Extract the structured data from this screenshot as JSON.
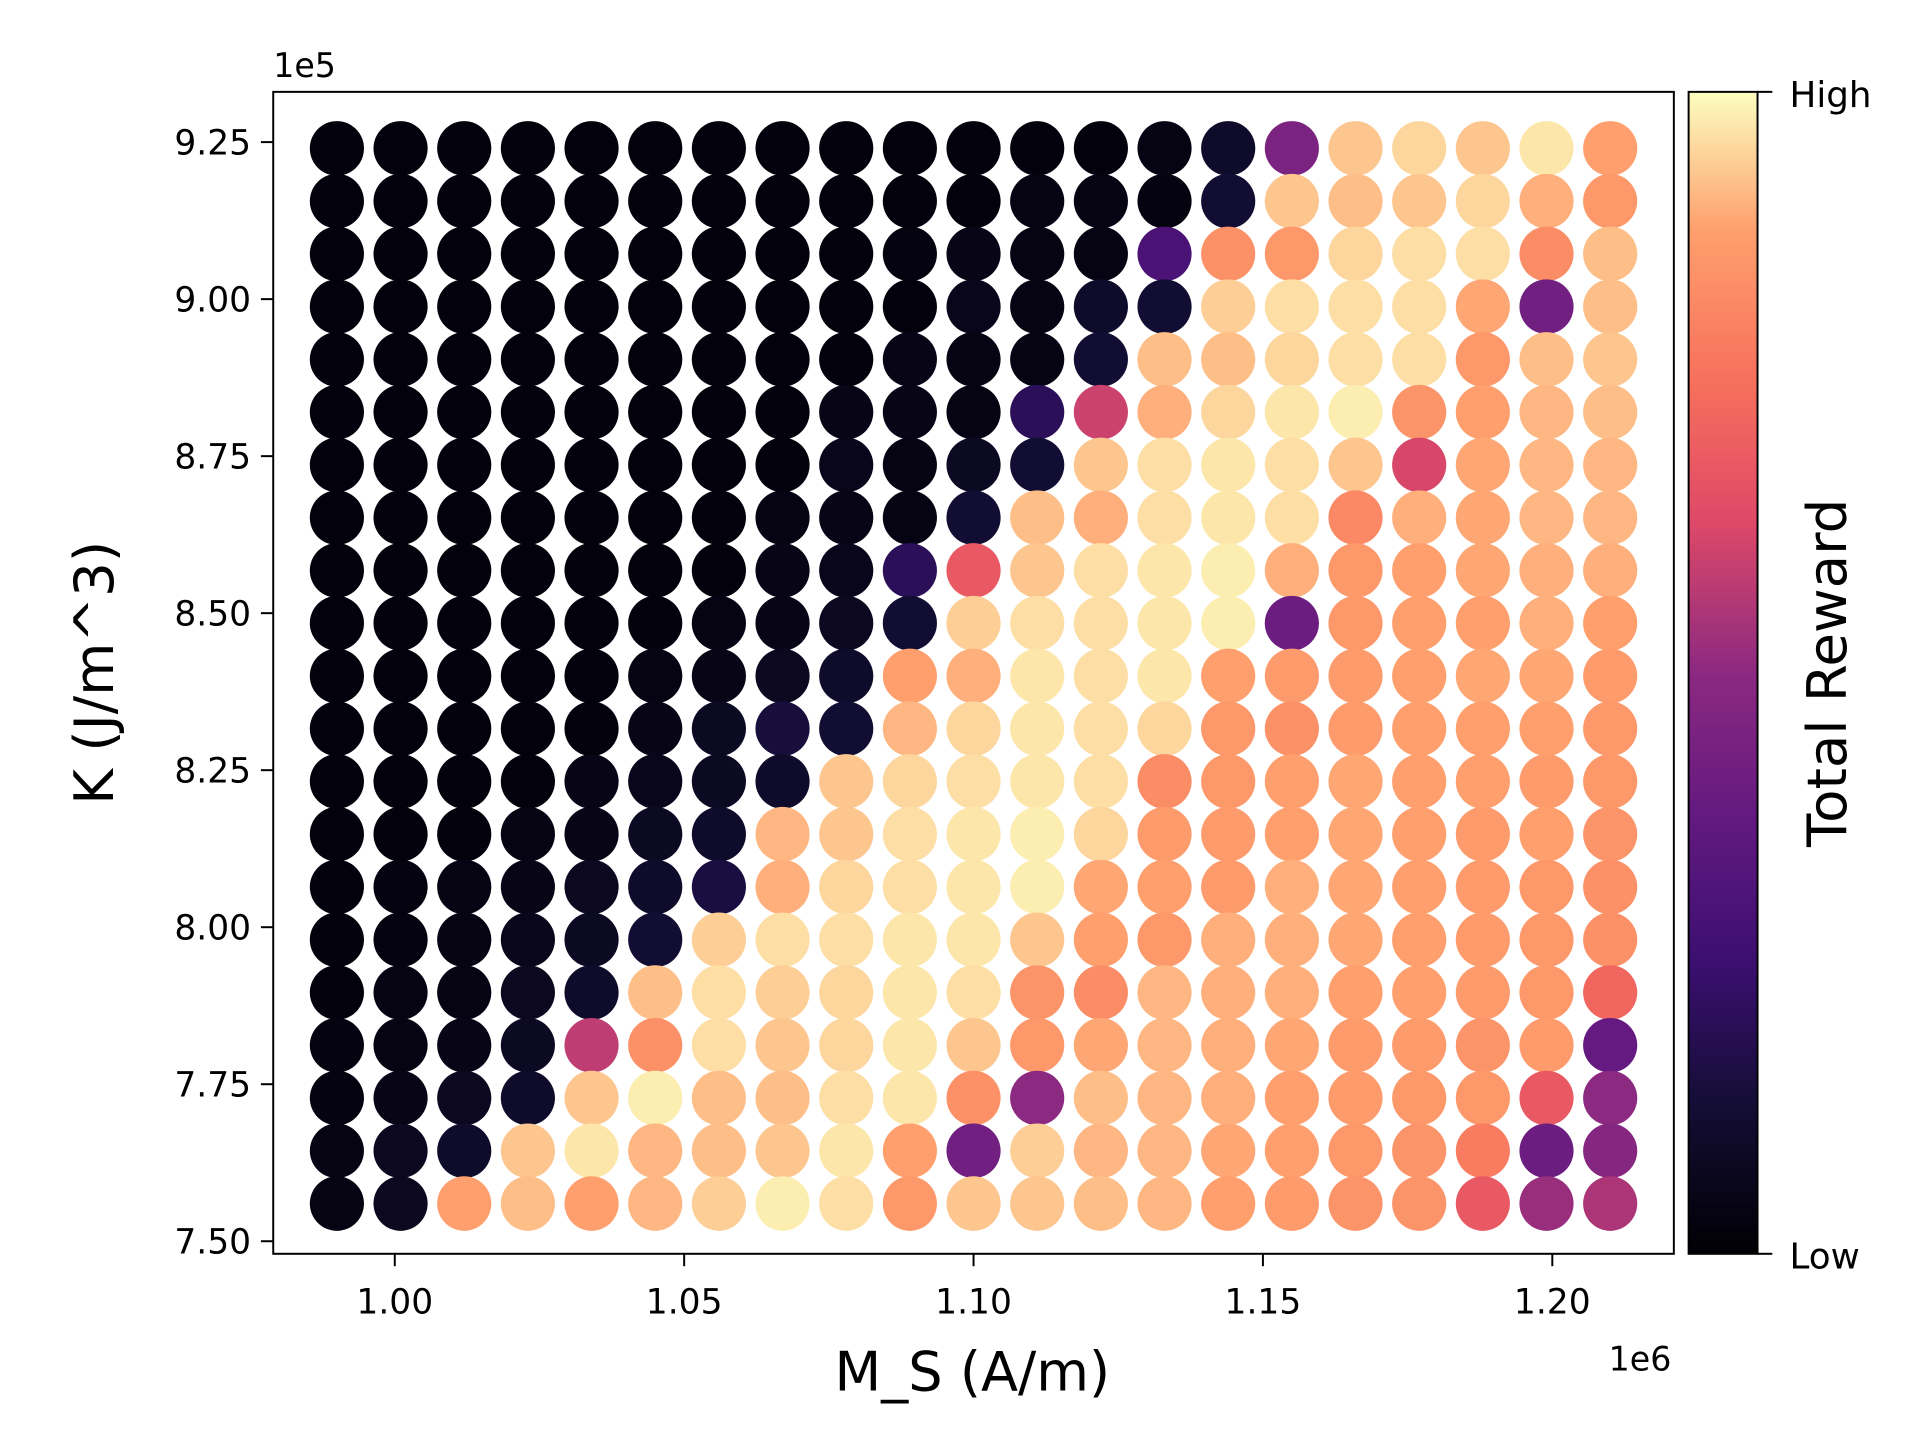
{
  "chart_data": {
    "type": "scatter",
    "xlabel": "M_S (A/m)",
    "xlabel_main": "M",
    "xlabel_sub": "S",
    "xlabel_rest": " (A/m)",
    "ylabel": "K (J/m^3)",
    "ylabel_main": "K (J/",
    "ylabel_m": "m",
    "ylabel_sup": "3",
    "ylabel_close": ")",
    "x_offset_label": "1e6",
    "y_offset_label": "1e5",
    "xlim": [
      0.979,
      1.221
    ],
    "ylim": [
      7.48,
      9.33
    ],
    "xticks": [
      1.0,
      1.05,
      1.1,
      1.15,
      1.2
    ],
    "xtick_labels": [
      "1.00",
      "1.05",
      "1.10",
      "1.15",
      "1.20"
    ],
    "yticks": [
      7.5,
      7.75,
      8.0,
      8.25,
      8.5,
      8.75,
      9.0,
      9.25
    ],
    "ytick_labels": [
      "7.50",
      "7.75",
      "8.00",
      "8.25",
      "8.50",
      "8.75",
      "9.00",
      "9.25"
    ],
    "x_values": [
      0.99,
      1.001,
      1.012,
      1.023,
      1.034,
      1.045,
      1.056,
      1.067,
      1.078,
      1.089,
      1.1,
      1.111,
      1.122,
      1.133,
      1.144,
      1.155,
      1.166,
      1.177,
      1.188,
      1.199,
      1.21
    ],
    "y_values_top_to_bottom": [
      9.24,
      9.156,
      9.072,
      8.988,
      8.904,
      8.82,
      8.736,
      8.652,
      8.568,
      8.484,
      8.4,
      8.316,
      8.232,
      8.148,
      8.064,
      7.98,
      7.896,
      7.812,
      7.728,
      7.644,
      7.56
    ],
    "reward_normalized": [
      [
        0.02,
        0.02,
        0.02,
        0.02,
        0.02,
        0.02,
        0.02,
        0.02,
        0.02,
        0.02,
        0.02,
        0.02,
        0.02,
        0.04,
        0.1,
        0.45,
        0.93,
        0.95,
        0.93,
        0.97,
        0.88
      ],
      [
        0.02,
        0.02,
        0.02,
        0.02,
        0.02,
        0.02,
        0.02,
        0.02,
        0.02,
        0.02,
        0.02,
        0.04,
        0.04,
        0.03,
        0.12,
        0.93,
        0.92,
        0.93,
        0.95,
        0.9,
        0.86
      ],
      [
        0.02,
        0.02,
        0.02,
        0.02,
        0.02,
        0.02,
        0.02,
        0.02,
        0.02,
        0.03,
        0.05,
        0.04,
        0.04,
        0.3,
        0.84,
        0.86,
        0.95,
        0.96,
        0.96,
        0.83,
        0.92
      ],
      [
        0.02,
        0.02,
        0.02,
        0.02,
        0.02,
        0.02,
        0.02,
        0.02,
        0.02,
        0.02,
        0.06,
        0.04,
        0.1,
        0.12,
        0.94,
        0.96,
        0.96,
        0.96,
        0.89,
        0.42,
        0.92
      ],
      [
        0.02,
        0.02,
        0.02,
        0.02,
        0.02,
        0.02,
        0.02,
        0.02,
        0.02,
        0.05,
        0.04,
        0.04,
        0.12,
        0.92,
        0.92,
        0.95,
        0.96,
        0.96,
        0.86,
        0.92,
        0.93
      ],
      [
        0.02,
        0.02,
        0.02,
        0.02,
        0.02,
        0.02,
        0.02,
        0.02,
        0.05,
        0.05,
        0.04,
        0.2,
        0.6,
        0.9,
        0.95,
        0.97,
        0.98,
        0.85,
        0.88,
        0.91,
        0.92
      ],
      [
        0.02,
        0.02,
        0.02,
        0.02,
        0.02,
        0.02,
        0.02,
        0.02,
        0.06,
        0.04,
        0.08,
        0.12,
        0.93,
        0.96,
        0.97,
        0.96,
        0.93,
        0.62,
        0.89,
        0.91,
        0.91
      ],
      [
        0.02,
        0.02,
        0.02,
        0.02,
        0.02,
        0.02,
        0.02,
        0.04,
        0.05,
        0.04,
        0.12,
        0.92,
        0.9,
        0.96,
        0.97,
        0.96,
        0.82,
        0.9,
        0.89,
        0.91,
        0.91
      ],
      [
        0.02,
        0.02,
        0.02,
        0.02,
        0.02,
        0.02,
        0.02,
        0.05,
        0.06,
        0.2,
        0.68,
        0.93,
        0.96,
        0.97,
        0.98,
        0.9,
        0.86,
        0.88,
        0.89,
        0.9,
        0.9
      ],
      [
        0.02,
        0.02,
        0.02,
        0.02,
        0.02,
        0.02,
        0.04,
        0.05,
        0.07,
        0.12,
        0.94,
        0.96,
        0.96,
        0.97,
        0.98,
        0.4,
        0.86,
        0.88,
        0.88,
        0.9,
        0.88
      ],
      [
        0.02,
        0.02,
        0.02,
        0.02,
        0.02,
        0.04,
        0.05,
        0.07,
        0.1,
        0.88,
        0.9,
        0.97,
        0.96,
        0.97,
        0.88,
        0.87,
        0.87,
        0.88,
        0.89,
        0.89,
        0.87
      ],
      [
        0.02,
        0.02,
        0.02,
        0.02,
        0.02,
        0.05,
        0.08,
        0.14,
        0.12,
        0.91,
        0.95,
        0.97,
        0.96,
        0.95,
        0.86,
        0.84,
        0.87,
        0.88,
        0.88,
        0.88,
        0.86
      ],
      [
        0.02,
        0.02,
        0.02,
        0.02,
        0.05,
        0.06,
        0.08,
        0.1,
        0.93,
        0.95,
        0.96,
        0.97,
        0.96,
        0.83,
        0.86,
        0.88,
        0.89,
        0.88,
        0.88,
        0.87,
        0.86
      ],
      [
        0.02,
        0.02,
        0.02,
        0.04,
        0.05,
        0.08,
        0.1,
        0.91,
        0.93,
        0.96,
        0.97,
        0.98,
        0.95,
        0.87,
        0.87,
        0.88,
        0.89,
        0.88,
        0.87,
        0.88,
        0.85
      ],
      [
        0.02,
        0.03,
        0.04,
        0.05,
        0.07,
        0.1,
        0.15,
        0.9,
        0.95,
        0.96,
        0.97,
        0.98,
        0.89,
        0.88,
        0.87,
        0.9,
        0.89,
        0.88,
        0.87,
        0.86,
        0.84
      ],
      [
        0.02,
        0.03,
        0.04,
        0.06,
        0.08,
        0.12,
        0.94,
        0.96,
        0.96,
        0.97,
        0.97,
        0.93,
        0.88,
        0.86,
        0.9,
        0.9,
        0.89,
        0.88,
        0.87,
        0.86,
        0.84
      ],
      [
        0.02,
        0.04,
        0.04,
        0.07,
        0.1,
        0.92,
        0.96,
        0.94,
        0.95,
        0.97,
        0.96,
        0.85,
        0.83,
        0.91,
        0.9,
        0.9,
        0.88,
        0.88,
        0.87,
        0.86,
        0.72
      ],
      [
        0.03,
        0.04,
        0.05,
        0.08,
        0.58,
        0.84,
        0.96,
        0.93,
        0.95,
        0.97,
        0.93,
        0.86,
        0.89,
        0.91,
        0.9,
        0.89,
        0.87,
        0.87,
        0.85,
        0.87,
        0.38
      ],
      [
        0.03,
        0.05,
        0.07,
        0.1,
        0.93,
        0.98,
        0.92,
        0.92,
        0.96,
        0.97,
        0.84,
        0.5,
        0.92,
        0.91,
        0.9,
        0.88,
        0.87,
        0.86,
        0.86,
        0.68,
        0.5
      ],
      [
        0.04,
        0.07,
        0.1,
        0.93,
        0.97,
        0.91,
        0.92,
        0.93,
        0.97,
        0.88,
        0.42,
        0.94,
        0.91,
        0.91,
        0.89,
        0.88,
        0.86,
        0.85,
        0.78,
        0.4,
        0.48
      ],
      [
        0.04,
        0.07,
        0.88,
        0.92,
        0.88,
        0.91,
        0.94,
        0.98,
        0.96,
        0.86,
        0.93,
        0.93,
        0.92,
        0.91,
        0.88,
        0.87,
        0.85,
        0.85,
        0.68,
        0.52,
        0.55
      ]
    ],
    "colormap": "magma",
    "colorbar": {
      "label": "Total Reward",
      "high_label": "High",
      "low_label": "Low"
    },
    "grid": false
  }
}
